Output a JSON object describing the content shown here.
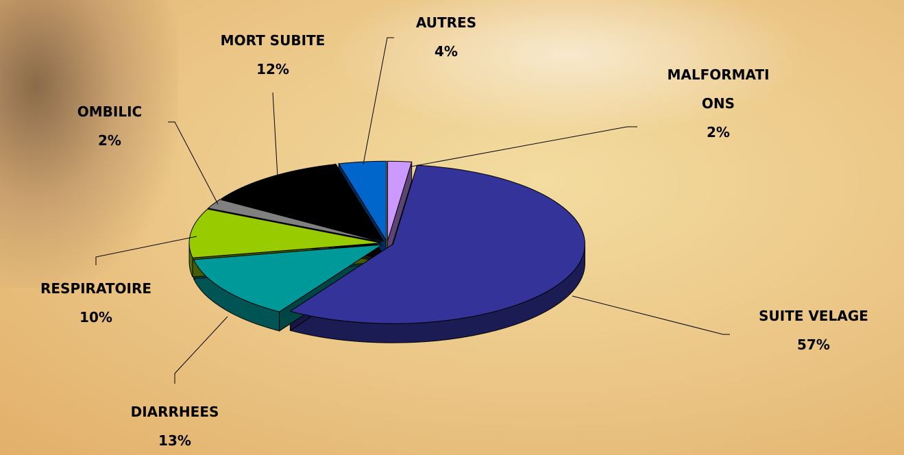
{
  "chart_data": {
    "type": "pie",
    "categories": [
      "MALFORMATIONS",
      "SUITE VELAGE",
      "DIARRHEES",
      "RESPIRATOIRE",
      "OMBILIC",
      "MORT SUBITE",
      "AUTRES"
    ],
    "values": [
      2,
      57,
      13,
      10,
      2,
      12,
      4
    ],
    "value_labels": [
      "2%",
      "57%",
      "13%",
      "10%",
      "2%",
      "12%",
      "4%"
    ],
    "colors": [
      "#cc99ff",
      "#333399",
      "#009999",
      "#99cc00",
      "#808080",
      "#000000",
      "#0066cc"
    ]
  }
}
